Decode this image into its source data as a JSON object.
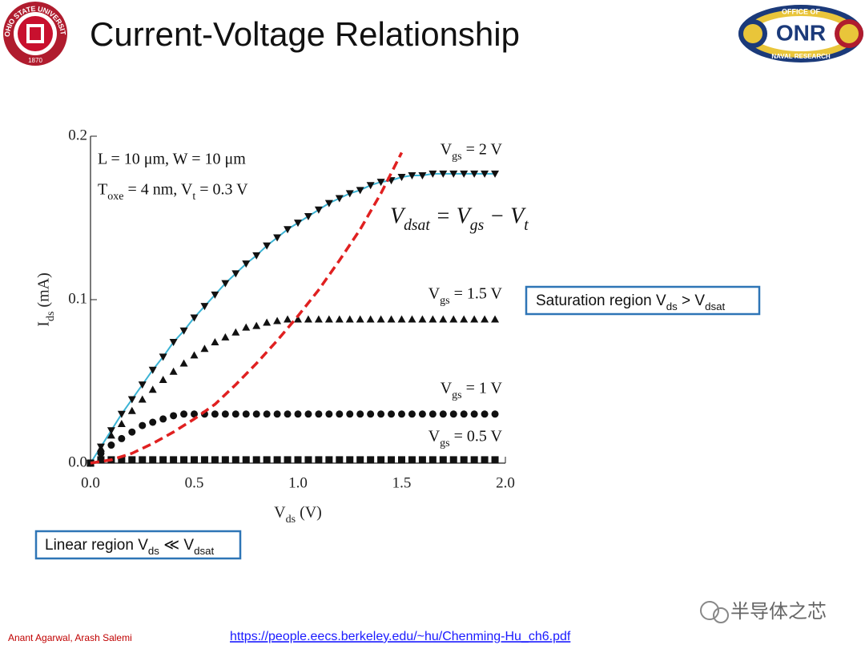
{
  "header": {
    "title": "Current-Voltage Relationship"
  },
  "logos": {
    "left": {
      "ring_text": "OHIO STATE UNIVERSITY",
      "year": "1870"
    },
    "right": {
      "top": "OFFICE OF",
      "center": "ONR",
      "bottom": "NAVAL RESEARCH"
    }
  },
  "chart_data": {
    "type": "line",
    "x_label": "Vds (V)",
    "y_label": "Ids  (mA)",
    "xlim": [
      0,
      2
    ],
    "ylim": [
      0,
      0.2
    ],
    "xticks": [
      {
        "value": 0,
        "label": "0.0"
      },
      0.5,
      {
        "value": 1,
        "label": "1.0"
      },
      1.5,
      {
        "value": 2,
        "label": "2.0"
      }
    ],
    "yticks": [
      {
        "value": 0,
        "label": "0.0"
      },
      0.1,
      0.2
    ],
    "grid": false,
    "x": [
      0,
      0.05,
      0.1,
      0.15,
      0.2,
      0.25,
      0.3,
      0.35,
      0.4,
      0.45,
      0.5,
      0.55,
      0.6,
      0.65,
      0.7,
      0.75,
      0.8,
      0.85,
      0.9,
      0.95,
      1,
      1.05,
      1.1,
      1.15,
      1.2,
      1.25,
      1.3,
      1.35,
      1.4,
      1.45,
      1.5,
      1.55,
      1.6,
      1.65,
      1.7,
      1.75,
      1.8,
      1.85,
      1.9,
      1.95
    ],
    "series": [
      {
        "name": "Vgs = 2 V",
        "color": "#111111",
        "marker": "triangle-down",
        "line_color": "#3bb3d4",
        "values": [
          0,
          0.01,
          0.02,
          0.03,
          0.039,
          0.048,
          0.057,
          0.065,
          0.074,
          0.081,
          0.089,
          0.096,
          0.103,
          0.11,
          0.116,
          0.122,
          0.127,
          0.133,
          0.138,
          0.143,
          0.147,
          0.151,
          0.155,
          0.159,
          0.162,
          0.165,
          0.167,
          0.17,
          0.172,
          0.173,
          0.175,
          0.176,
          0.176,
          0.177,
          0.177,
          0.177,
          0.177,
          0.177,
          0.177,
          0.177
        ]
      },
      {
        "name": "Vgs = 1.5 V",
        "color": "#111111",
        "marker": "triangle-up",
        "values": [
          0,
          0.009,
          0.017,
          0.024,
          0.032,
          0.039,
          0.045,
          0.051,
          0.056,
          0.061,
          0.066,
          0.07,
          0.074,
          0.077,
          0.08,
          0.083,
          0.084,
          0.086,
          0.087,
          0.088,
          0.088,
          0.088,
          0.088,
          0.088,
          0.088,
          0.088,
          0.088,
          0.088,
          0.088,
          0.088,
          0.088,
          0.088,
          0.088,
          0.088,
          0.088,
          0.088,
          0.088,
          0.088,
          0.088,
          0.088
        ]
      },
      {
        "name": "Vgs = 1 V",
        "color": "#111111",
        "marker": "circle",
        "values": [
          0,
          0.006,
          0.011,
          0.015,
          0.019,
          0.023,
          0.025,
          0.027,
          0.029,
          0.03,
          0.03,
          0.03,
          0.03,
          0.03,
          0.03,
          0.03,
          0.03,
          0.03,
          0.03,
          0.03,
          0.03,
          0.03,
          0.03,
          0.03,
          0.03,
          0.03,
          0.03,
          0.03,
          0.03,
          0.03,
          0.03,
          0.03,
          0.03,
          0.03,
          0.03,
          0.03,
          0.03,
          0.03,
          0.03,
          0.03
        ]
      },
      {
        "name": "Vgs = 0.5 V",
        "color": "#111111",
        "marker": "square",
        "values": [
          0,
          0.002,
          0.002,
          0.002,
          0.002,
          0.002,
          0.002,
          0.002,
          0.002,
          0.002,
          0.002,
          0.002,
          0.002,
          0.002,
          0.002,
          0.002,
          0.002,
          0.002,
          0.002,
          0.002,
          0.002,
          0.002,
          0.002,
          0.002,
          0.002,
          0.002,
          0.002,
          0.002,
          0.002,
          0.002,
          0.002,
          0.002,
          0.002,
          0.002,
          0.002,
          0.002,
          0.002,
          0.002,
          0.002,
          0.002
        ]
      }
    ],
    "dashed_line": {
      "color": "#e02020",
      "x": [
        0,
        0.1,
        0.2,
        0.3,
        0.4,
        0.5,
        0.6,
        0.7,
        0.8,
        0.9,
        1,
        1.1,
        1.2,
        1.3,
        1.4,
        1.5
      ],
      "values": [
        0,
        0.002,
        0.006,
        0.012,
        0.019,
        0.027,
        0.036,
        0.048,
        0.061,
        0.075,
        0.09,
        0.106,
        0.124,
        0.143,
        0.165,
        0.19
      ]
    },
    "annotations": [
      "L = 10 μm, W = 10 μm",
      "Toxe = 4 nm, Vt = 0.3 V",
      "Vdsat = Vgs − Vt"
    ]
  },
  "callouts": {
    "saturation": "Saturation region Vds > Vdsat",
    "linear": "Linear region Vds ≪ Vdsat"
  },
  "footer": {
    "authors": "Anant Agarwal, Arash Salemi",
    "link": "https://people.eecs.berkeley.edu/~hu/Chenming-Hu_ch6.pdf",
    "watermark": "半导体之芯"
  }
}
